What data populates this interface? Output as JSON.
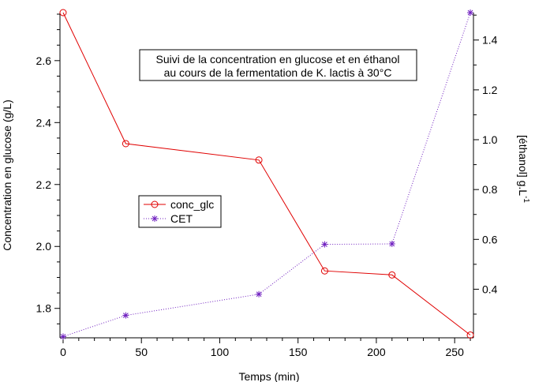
{
  "chart_data": {
    "type": "line",
    "title_lines": [
      "Suivi de la concentration en glucose et en éthanol",
      "au cours de la fermentation de K. lactis à 30°C"
    ],
    "xlabel": "Temps (min)",
    "ylabel_left": "Concentration en glucose (g/L)",
    "ylabel_right": "[éthanol] g.L",
    "ylabel_right_superscript": "-1",
    "x": [
      0,
      40,
      125,
      167,
      210,
      260
    ],
    "xlim": [
      -2,
      262
    ],
    "ylim_left": [
      1.705,
      2.755
    ],
    "ylim_right": [
      0.205,
      1.51
    ],
    "x_ticks": [
      0,
      50,
      100,
      150,
      200,
      250
    ],
    "y_left_ticks": [
      1.8,
      2.0,
      2.2,
      2.4,
      2.6
    ],
    "y_right_ticks": [
      0.4,
      0.6,
      0.8,
      1.0,
      1.2,
      1.4
    ],
    "grid": false,
    "legend_position": "center-left",
    "series": [
      {
        "name": "conc_glc",
        "axis": "left",
        "marker": "circle",
        "line_style": "solid",
        "color": "#e00000",
        "values": [
          2.755,
          2.332,
          2.279,
          1.921,
          1.908,
          1.714
        ]
      },
      {
        "name": "CET",
        "axis": "right",
        "marker": "asterisk",
        "line_style": "dotted",
        "color": "#7020c0",
        "values": [
          0.21,
          0.295,
          0.38,
          0.58,
          0.582,
          1.51
        ]
      }
    ]
  }
}
